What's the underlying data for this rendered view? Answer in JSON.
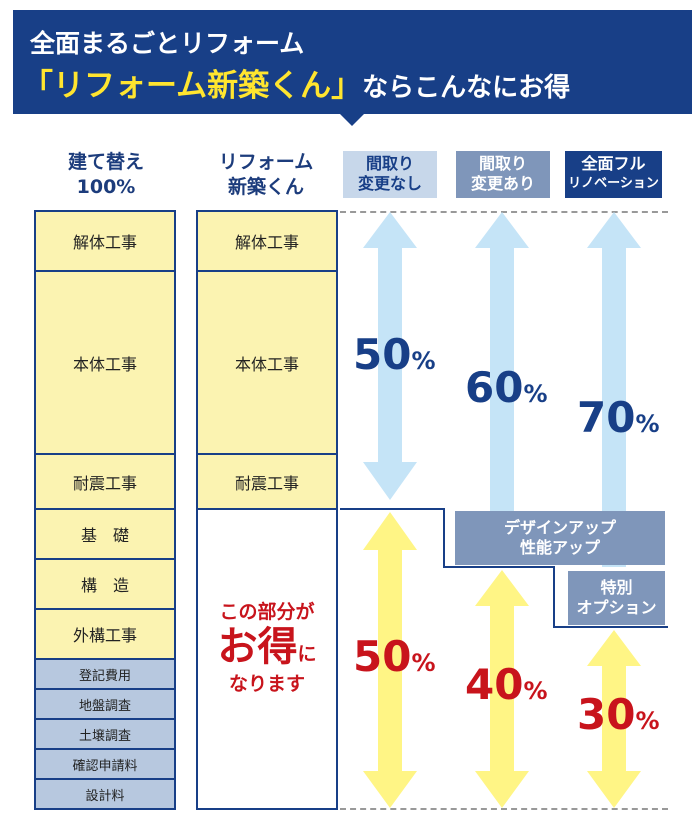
{
  "header": {
    "line1": "全面まるごとリフォーム",
    "line2_highlight": "「リフォーム新築くん」",
    "line2_rest": "ならこんなにお得"
  },
  "columns": {
    "rebuild": {
      "line1": "建て替え",
      "line2": "100%"
    },
    "kun": {
      "line1": "リフォーム",
      "line2": "新築くん"
    },
    "plan_no_change": {
      "line1": "間取り",
      "line2": "変更なし",
      "color": "#c7d7ea",
      "text_color": "#183f87"
    },
    "plan_change": {
      "line1": "間取り",
      "line2": "変更あり",
      "color": "#7f96ba"
    },
    "full_renovation": {
      "line1": "全面フル",
      "line2": "リノベーション",
      "color": "#183f87"
    }
  },
  "rebuild_items": [
    "解体工事",
    "本体工事",
    "耐震工事",
    "基　礎",
    "構　造",
    "外構工事"
  ],
  "rebuild_fees": [
    "登記費用",
    "地盤調査",
    "土壌調査",
    "確認申請料",
    "設計料"
  ],
  "kun_items": [
    "解体工事",
    "本体工事",
    "耐震工事"
  ],
  "savings_note": {
    "line1": "この部分が",
    "big1": "お",
    "big2": "得",
    "small": "に",
    "line3": "なります"
  },
  "percentages": {
    "cost": [
      {
        "value": "50",
        "unit": "%"
      },
      {
        "value": "60",
        "unit": "%"
      },
      {
        "value": "70",
        "unit": "%"
      }
    ],
    "savings": [
      {
        "value": "50",
        "unit": "%"
      },
      {
        "value": "40",
        "unit": "%"
      },
      {
        "value": "30",
        "unit": "%"
      }
    ]
  },
  "options": {
    "design": {
      "line1": "デザインアップ",
      "line2": "性能アップ"
    },
    "special": {
      "line1": "特別",
      "line2": "オプション"
    }
  },
  "colors": {
    "navy": "#183f87",
    "yellow_cell": "#fbf3b1",
    "blue_cell": "#b7c8df",
    "cost_arrow": "#c5e4f7",
    "saving_arrow": "#fff585",
    "highlight_text": "#ffe52f",
    "red_text": "#c8141c"
  }
}
